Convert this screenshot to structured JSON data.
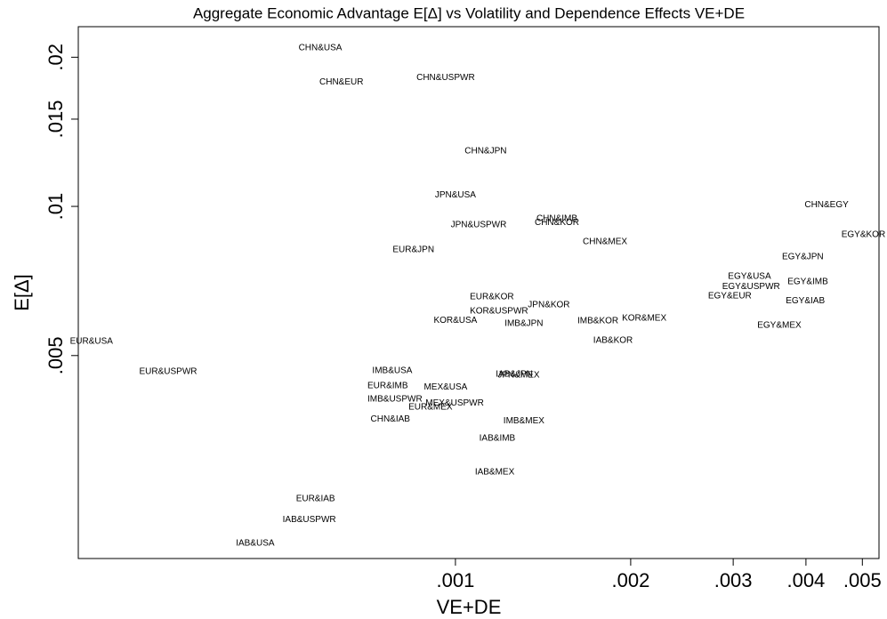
{
  "chart_data": {
    "type": "scatter",
    "title": "Aggregate Economic Advantage E[Δ] vs Volatility and Dependence Effects VE+DE",
    "x_label": "VE+DE",
    "y_label": "E[Δ]",
    "xscale": "log",
    "yscale": "log",
    "color": "#000000",
    "xlim": [
      0.000225,
      0.00534
    ],
    "ylim": [
      0.001947,
      0.02305
    ],
    "xticks": [
      {
        "value": 0.001,
        "label": ".001"
      },
      {
        "value": 0.002,
        "label": ".002"
      },
      {
        "value": 0.003,
        "label": ".003"
      },
      {
        "value": 0.004,
        "label": ".004"
      },
      {
        "value": 0.005,
        "label": ".005"
      }
    ],
    "yticks": [
      {
        "value": 0.005,
        "label": ".005"
      },
      {
        "value": 0.01,
        "label": ".01"
      },
      {
        "value": 0.015,
        "label": ".015"
      },
      {
        "value": 0.02,
        "label": ".02"
      }
    ],
    "labels": [
      "CHN&USA",
      "CHN&EUR",
      "CHN&USPWR",
      "CHN&JPN",
      "JPN&USA",
      "CHN&EGY",
      "JPN&USPWR",
      "CHN&IMB",
      "CHN&KOR",
      "EGY&KOR",
      "CHN&MEX",
      "EUR&JPN",
      "EGY&JPN",
      "EGY&USA",
      "EGY&IMB",
      "EGY&USPWR",
      "EGY&EUR",
      "EGY&IAB",
      "EUR&KOR",
      "JPN&KOR",
      "KOR&USPWR",
      "KOR&USA",
      "IMB&JPN",
      "IMB&KOR",
      "KOR&MEX",
      "EGY&MEX",
      "IAB&KOR",
      "EUR&USA",
      "EUR&USPWR",
      "IMB&USA",
      "IAB&JPN",
      "JPN&MEX",
      "EUR&IMB",
      "MEX&USA",
      "IMB&USPWR",
      "MEX&USPWR",
      "EUR&MEX",
      "CHN&IAB",
      "IMB&MEX",
      "IAB&IMB",
      "IAB&MEX",
      "EUR&IAB",
      "IAB&USPWR",
      "IAB&USA"
    ],
    "x": [
      0.000586,
      0.000637,
      0.000962,
      0.001127,
      0.001,
      0.00434,
      0.001096,
      0.001494,
      0.001494,
      0.00502,
      0.001807,
      0.000847,
      0.00395,
      0.0032,
      0.00403,
      0.00322,
      0.00296,
      0.00399,
      0.001155,
      0.001447,
      0.001188,
      0.001,
      0.001311,
      0.001757,
      0.00211,
      0.0036,
      0.001865,
      0.000237,
      0.000321,
      0.000779,
      0.001262,
      0.001284,
      0.000765,
      0.000962,
      0.000787,
      0.000997,
      0.000906,
      0.000773,
      0.001311,
      0.00118,
      0.001168,
      0.000575,
      0.000561,
      0.000453
    ],
    "values": [
      0.02087,
      0.01783,
      0.0182,
      0.01292,
      0.01055,
      0.01008,
      0.00917,
      0.00944,
      0.00928,
      0.00876,
      0.00848,
      0.00817,
      0.0079,
      0.00722,
      0.00704,
      0.00689,
      0.00659,
      0.00645,
      0.00656,
      0.00632,
      0.00614,
      0.00589,
      0.0058,
      0.00587,
      0.00594,
      0.00575,
      0.00536,
      0.00534,
      0.00464,
      0.00466,
      0.00458,
      0.00456,
      0.00434,
      0.00432,
      0.00408,
      0.00401,
      0.00393,
      0.00372,
      0.00369,
      0.0034,
      0.00291,
      0.00257,
      0.00233,
      0.00209
    ]
  }
}
